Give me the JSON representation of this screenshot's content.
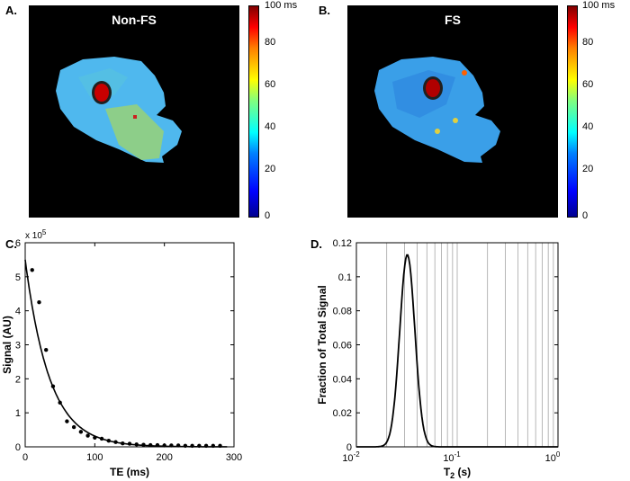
{
  "panels": {
    "a": {
      "label": "A.",
      "title": "Non-FS"
    },
    "b": {
      "label": "B.",
      "title": "FS"
    },
    "c": {
      "label": "C."
    },
    "d": {
      "label": "D."
    }
  },
  "colorbar": {
    "unit": "ms",
    "ticks": [
      "100",
      "80",
      "60",
      "40",
      "20",
      "0"
    ]
  },
  "chart_data": [
    {
      "type": "scatter",
      "panel": "C",
      "title": "",
      "xlabel": "TE (ms)",
      "ylabel": "Signal (AU)",
      "xlim": [
        0,
        300
      ],
      "ylim": [
        0,
        6
      ],
      "y_multiplier": "x 10^5",
      "multiplier_base": "x 10",
      "multiplier_exp": "5",
      "xticks": [
        "0",
        "100",
        "200",
        "300"
      ],
      "yticks": [
        "0",
        "1",
        "2",
        "3",
        "4",
        "5",
        "6"
      ],
      "points": {
        "x": [
          10,
          20,
          30,
          40,
          50,
          60,
          70,
          80,
          90,
          100,
          110,
          120,
          130,
          140,
          150,
          160,
          170,
          180,
          190,
          200,
          210,
          220,
          230,
          240,
          250,
          260,
          270,
          280
        ],
        "y": [
          5.2,
          4.25,
          2.85,
          1.78,
          1.3,
          0.75,
          0.58,
          0.44,
          0.33,
          0.27,
          0.24,
          0.18,
          0.14,
          0.1,
          0.09,
          0.07,
          0.06,
          0.05,
          0.05,
          0.04,
          0.04,
          0.04,
          0.03,
          0.03,
          0.03,
          0.03,
          0.03,
          0.03
        ]
      },
      "fit": {
        "model": "mono-exponential",
        "s0": 5.5,
        "t2_ms": 35
      }
    },
    {
      "type": "line",
      "panel": "D",
      "xlabel": "T2 (s)",
      "xlabel_main": "T",
      "xlabel_sub": "2",
      "xlabel_rest": " (s)",
      "ylabel": "Fraction of Total Signal",
      "xscale": "log",
      "xlim": [
        0.01,
        1
      ],
      "ylim": [
        0,
        0.12
      ],
      "xticks": [
        {
          "base": "10",
          "exp": "-2"
        },
        {
          "base": "10",
          "exp": "-1"
        },
        {
          "base": "10",
          "exp": "0"
        }
      ],
      "yticks": [
        "0",
        "0.02",
        "0.04",
        "0.06",
        "0.08",
        "0.1",
        "0.12"
      ],
      "distribution": {
        "peak_T2_s": 0.032,
        "peak_fraction": 0.113,
        "log_sigma": 0.075
      }
    }
  ]
}
